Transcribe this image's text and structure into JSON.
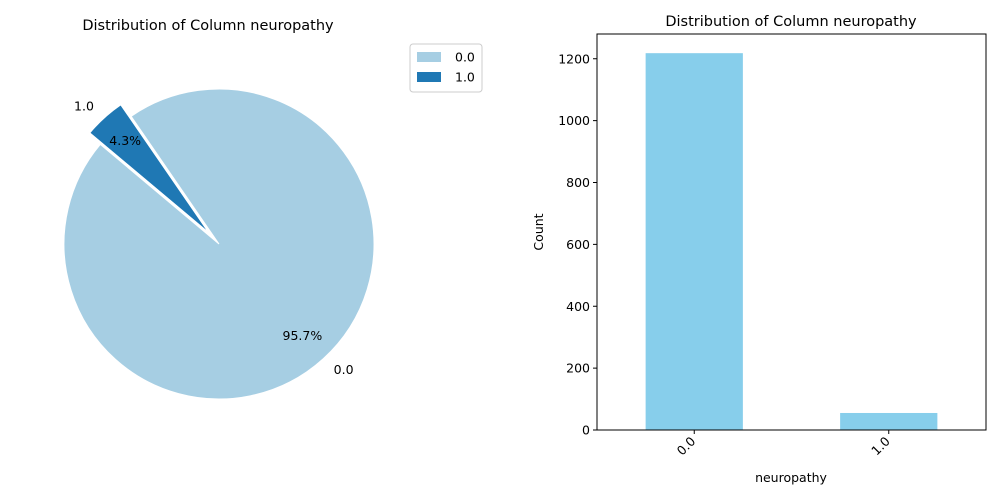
{
  "chart_data": [
    {
      "type": "pie",
      "title": "Distribution of Column neuropathy",
      "labels": [
        "0.0",
        "1.0"
      ],
      "values": [
        95.7,
        4.3
      ],
      "pct_labels": [
        "95.7%",
        "4.3%"
      ],
      "colors": [
        "#a6cee3",
        "#1f78b4"
      ],
      "exploded": [
        "1.0"
      ],
      "legend": {
        "placement": "top-right",
        "entries": [
          {
            "label": "0.0",
            "color": "#a6cee3"
          },
          {
            "label": "1.0",
            "color": "#1f78b4"
          }
        ]
      }
    },
    {
      "type": "bar",
      "title": "Distribution of Column neuropathy",
      "categories": [
        "0.0",
        "1.0"
      ],
      "values": [
        1218,
        55
      ],
      "xlabel": "neuropathy",
      "ylabel": "Count",
      "ylim": [
        0,
        1280
      ],
      "yticks": [
        0,
        200,
        400,
        600,
        800,
        1000,
        1200
      ],
      "color": "#87ceeb",
      "grid": false
    }
  ]
}
